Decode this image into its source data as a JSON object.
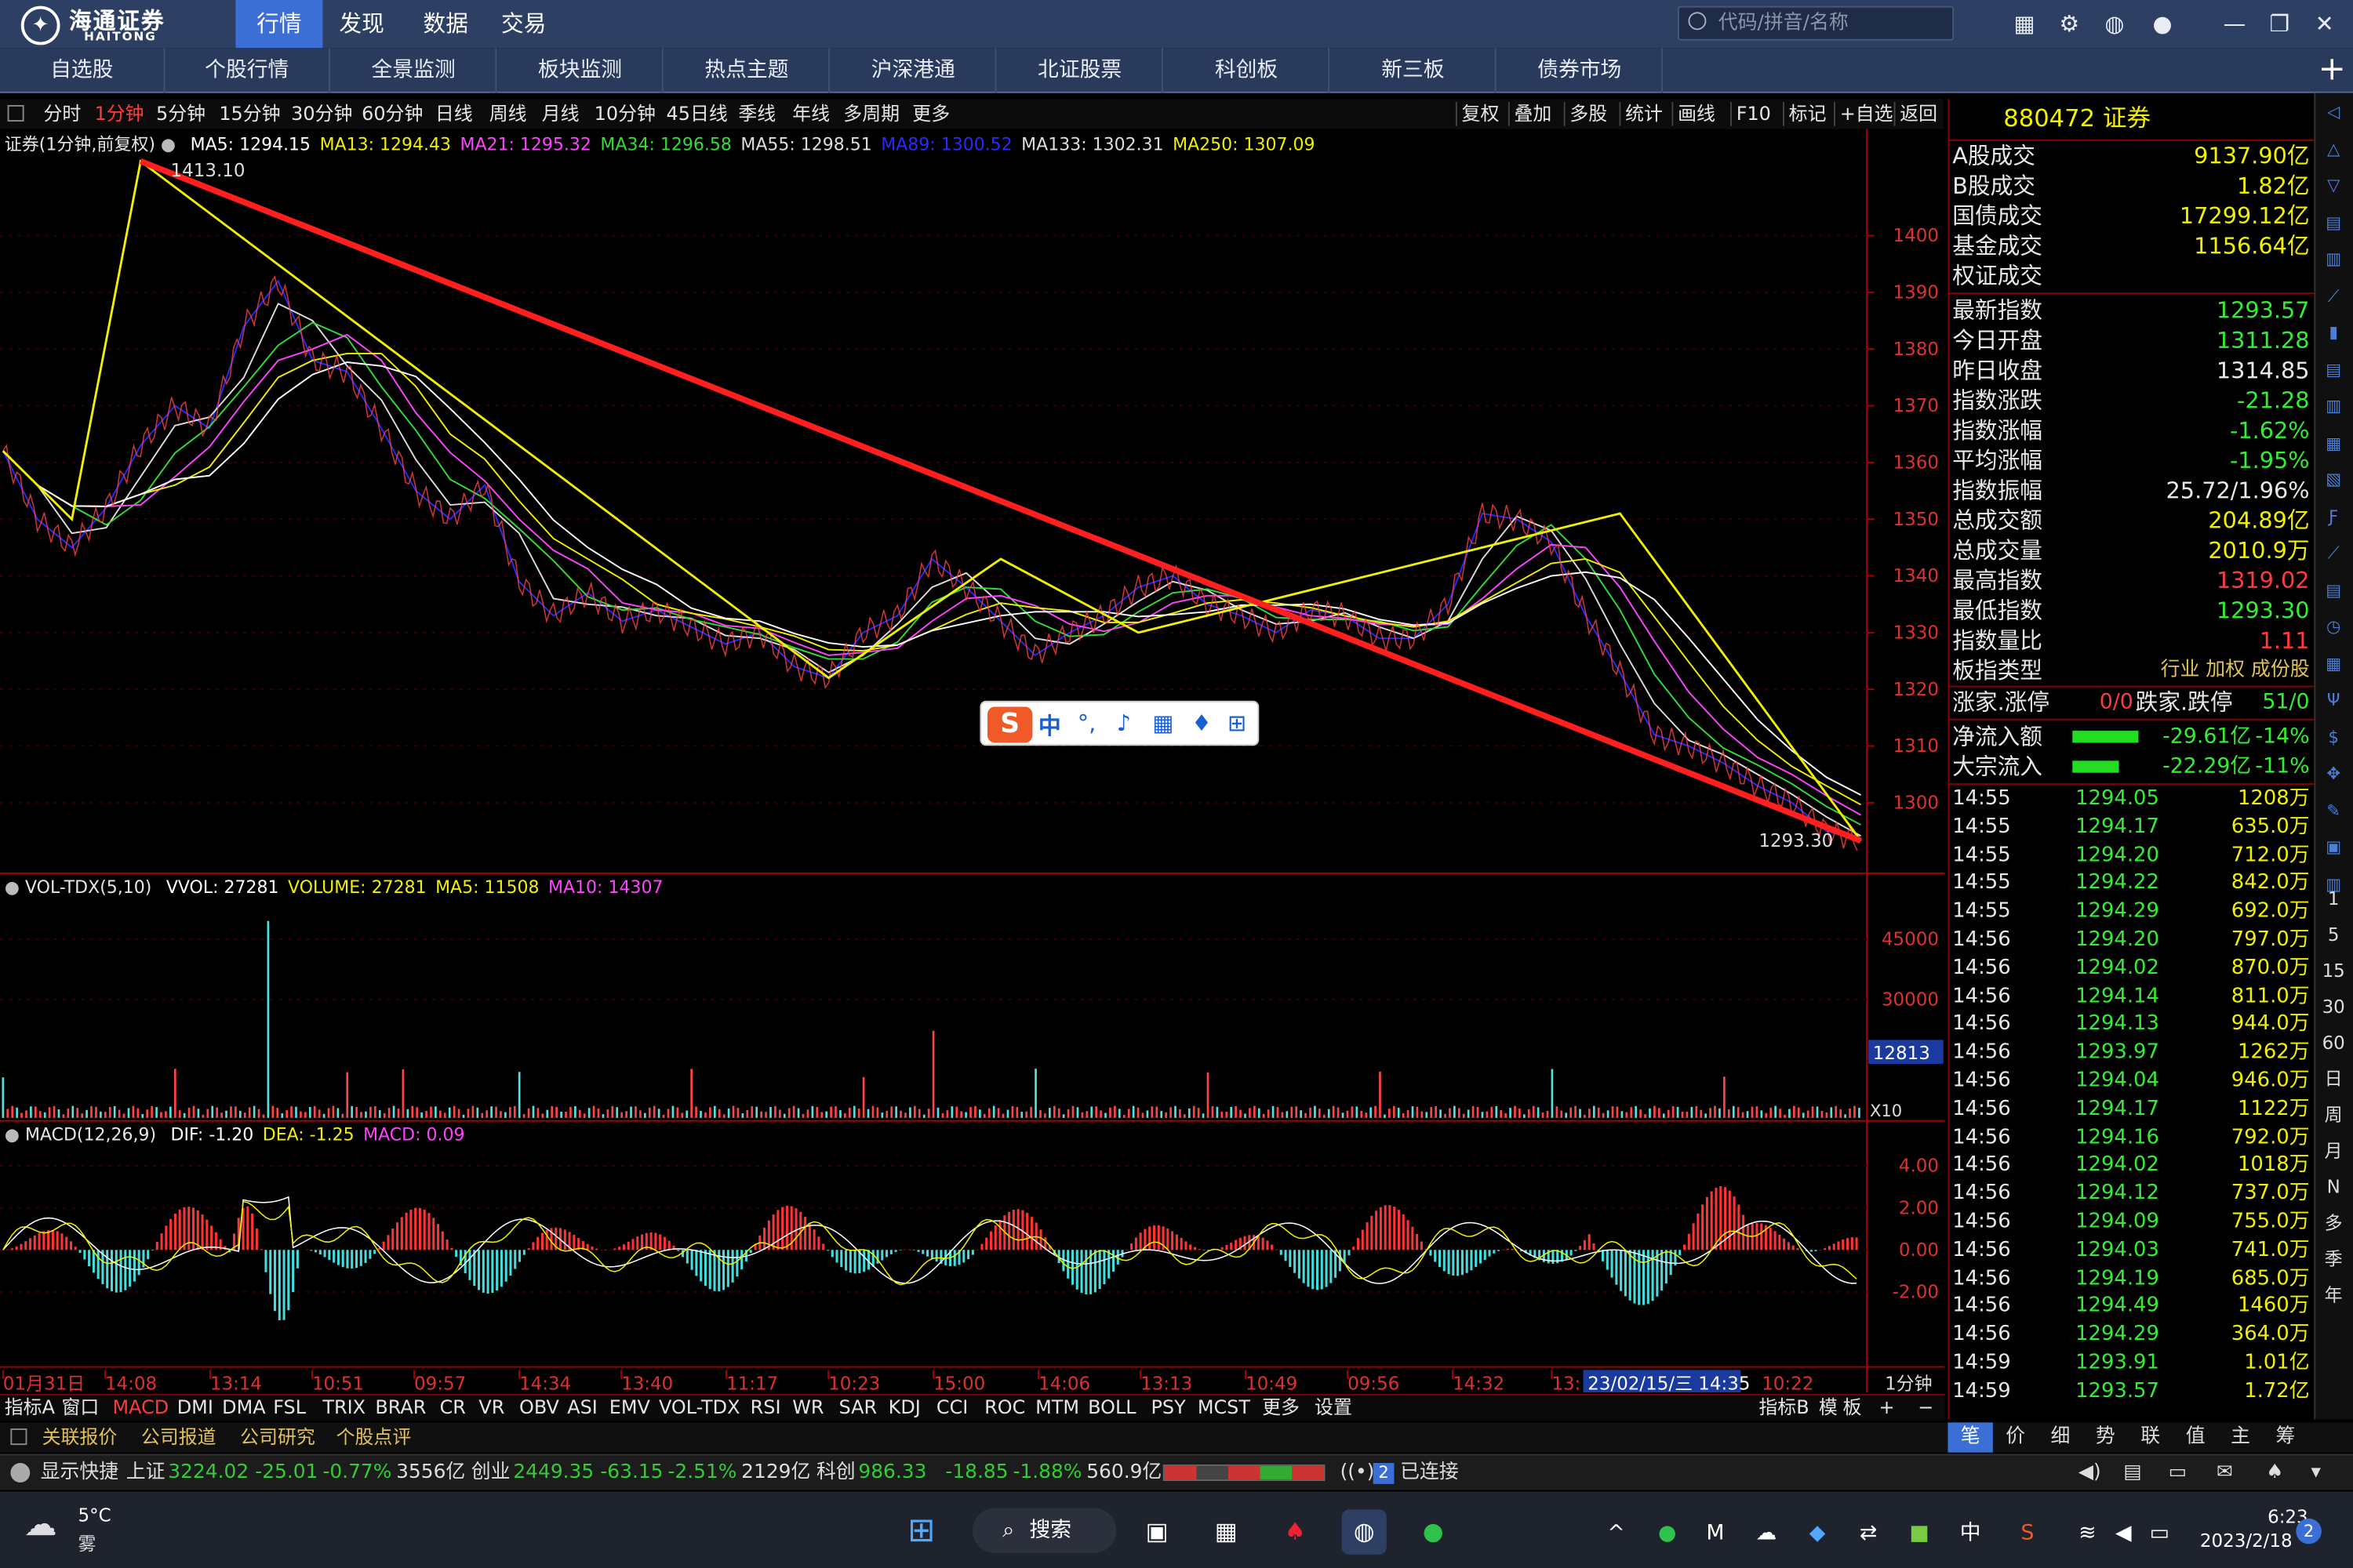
{
  "titlebar": {
    "logo_name": "海通证券",
    "logo_sub": "HAITONG",
    "menus": [
      "行情",
      "发现",
      "数据",
      "交易"
    ],
    "search_placeholder": "代码/拼音/名称"
  },
  "nav": [
    "自选股",
    "个股行情",
    "全景监测",
    "板块监测",
    "热点主题",
    "沪深港通",
    "北证股票",
    "科创板",
    "新三板",
    "债券市场"
  ],
  "periods": [
    "分时",
    "1分钟",
    "5分钟",
    "15分钟",
    "30分钟",
    "60分钟",
    "日线",
    "周线",
    "月线",
    "10分钟",
    "45日线",
    "季线",
    "年线",
    "多周期",
    "更多"
  ],
  "tools": [
    "复权",
    "叠加",
    "多股",
    "统计",
    "画线",
    "F10",
    "标记",
    "+自选",
    "返回"
  ],
  "chart": {
    "title": "证券(1分钟,前复权)",
    "ma": [
      {
        "label": "MA5: 1294.15",
        "color": "#ffffff"
      },
      {
        "label": "MA13: 1294.43",
        "color": "#f0f000"
      },
      {
        "label": "MA21: 1295.32",
        "color": "#ff44ff"
      },
      {
        "label": "MA34: 1296.58",
        "color": "#33dd33"
      },
      {
        "label": "MA55: 1298.51",
        "color": "#dddddd"
      },
      {
        "label": "MA89: 1300.52",
        "color": "#2a2aff"
      },
      {
        "label": "MA133: 1302.31",
        "color": "#dddddd"
      },
      {
        "label": "MA250: 1307.09",
        "color": "#f0f000"
      }
    ],
    "high_label": "1413.10",
    "low_label": "1293.30",
    "price_ticks": [
      "1400",
      "1390",
      "1380",
      "1370",
      "1360",
      "1350",
      "1340",
      "1330",
      "1320",
      "1310",
      "1300"
    ],
    "vol_title": "VOL-TDX(5,10)",
    "vol_legend": [
      {
        "label": "VVOL: 27281",
        "color": "#ffffff"
      },
      {
        "label": "VOLUME: 27281",
        "color": "#f0f000"
      },
      {
        "label": "MA5: 11508",
        "color": "#f0f000"
      },
      {
        "label": "MA10: 14307",
        "color": "#ff44ff"
      }
    ],
    "vol_ticks": [
      "45000",
      "30000"
    ],
    "vol_current": "12813",
    "vol_unit": "X10",
    "macd_title": "MACD(12,26,9)",
    "macd_legend": [
      {
        "label": "DIF: -1.20",
        "color": "#ffffff"
      },
      {
        "label": "DEA: -1.25",
        "color": "#f0f000"
      },
      {
        "label": "MACD: 0.09",
        "color": "#ff44ff"
      }
    ],
    "macd_ticks": [
      "4.00",
      "2.00",
      "0.00",
      "-2.00"
    ],
    "time_ticks": [
      "01月31日",
      "14:08",
      "13:14",
      "10:51",
      "09:57",
      "14:34",
      "13:40",
      "11:17",
      "10:23",
      "15:00",
      "14:06",
      "13:13",
      "10:49",
      "09:56",
      "14:32",
      "13:"
    ],
    "time_cursor": "23/02/15/三 14:35",
    "time_end": "10:22",
    "period_label": "1分钟"
  },
  "indicators": [
    "指标A",
    "窗口",
    "MACD",
    "DMI",
    "DMA",
    "FSL",
    "TRIX",
    "BRAR",
    "CR",
    "VR",
    "OBV",
    "ASI",
    "EMV",
    "VOL-TDX",
    "RSI",
    "WR",
    "SAR",
    "KDJ",
    "CCI",
    "ROC",
    "MTM",
    "BOLL",
    "PSY",
    "MCST",
    "更多",
    "设置"
  ],
  "indicators_right": [
    "指标B",
    "模",
    "板",
    "+",
    "−"
  ],
  "bottom_tabs": [
    "关联报价",
    "公司报道",
    "公司研究",
    "个股点评"
  ],
  "right_panel": {
    "code_title": "880472 证券",
    "stats": [
      {
        "label": "A股成交",
        "value": "9137.90亿",
        "color": "#f0f000"
      },
      {
        "label": "B股成交",
        "value": "1.82亿",
        "color": "#f0f000"
      },
      {
        "label": "国债成交",
        "value": "17299.12亿",
        "color": "#f0f000"
      },
      {
        "label": "基金成交",
        "value": "1156.64亿",
        "color": "#f0f000"
      },
      {
        "label": "权证成交",
        "value": "",
        "color": "#f0f000"
      }
    ],
    "index": [
      {
        "label": "最新指数",
        "value": "1293.57",
        "color": "#33ee33"
      },
      {
        "label": "今日开盘",
        "value": "1311.28",
        "color": "#33ee33"
      },
      {
        "label": "昨日收盘",
        "value": "1314.85",
        "color": "#e8e8e8"
      },
      {
        "label": "指数涨跌",
        "value": "-21.28",
        "color": "#33ee33"
      },
      {
        "label": "指数涨幅",
        "value": "-1.62%",
        "color": "#33ee33"
      },
      {
        "label": "平均涨幅",
        "value": "-1.95%",
        "color": "#33ee33"
      },
      {
        "label": "指数振幅",
        "value": "25.72/1.96%",
        "color": "#e8e8e8"
      },
      {
        "label": "总成交额",
        "value": "204.89亿",
        "color": "#f0f000"
      },
      {
        "label": "总成交量",
        "value": "2010.9万",
        "color": "#f0f000"
      },
      {
        "label": "最高指数",
        "value": "1319.02",
        "color": "#ff3b3b"
      },
      {
        "label": "最低指数",
        "value": "1293.30",
        "color": "#33ee33"
      },
      {
        "label": "指数量比",
        "value": "1.11",
        "color": "#ff3b3b"
      }
    ],
    "type_label": "板指类型",
    "type_value": "行业 加权 成份股",
    "updown_label": "涨家.涨停",
    "updown_value": "0/0",
    "down_label": "跌家.跌停",
    "down_value": "51/0",
    "flow": [
      {
        "label": "净流入额",
        "value": "-29.61亿",
        "pct": "-14%",
        "fill": 0.85
      },
      {
        "label": "大宗流入",
        "value": "-22.29亿",
        "pct": "-11%",
        "fill": 0.6
      }
    ],
    "ticks": [
      {
        "t": "14:55",
        "p": "1294.05",
        "v": "1208万"
      },
      {
        "t": "14:55",
        "p": "1294.17",
        "v": "635.0万"
      },
      {
        "t": "14:55",
        "p": "1294.20",
        "v": "712.0万"
      },
      {
        "t": "14:55",
        "p": "1294.22",
        "v": "842.0万"
      },
      {
        "t": "14:55",
        "p": "1294.29",
        "v": "692.0万"
      },
      {
        "t": "14:56",
        "p": "1294.20",
        "v": "797.0万"
      },
      {
        "t": "14:56",
        "p": "1294.02",
        "v": "870.0万"
      },
      {
        "t": "14:56",
        "p": "1294.14",
        "v": "811.0万"
      },
      {
        "t": "14:56",
        "p": "1294.13",
        "v": "944.0万"
      },
      {
        "t": "14:56",
        "p": "1293.97",
        "v": "1262万"
      },
      {
        "t": "14:56",
        "p": "1294.04",
        "v": "946.0万"
      },
      {
        "t": "14:56",
        "p": "1294.17",
        "v": "1122万"
      },
      {
        "t": "14:56",
        "p": "1294.16",
        "v": "792.0万"
      },
      {
        "t": "14:56",
        "p": "1294.02",
        "v": "1018万"
      },
      {
        "t": "14:56",
        "p": "1294.12",
        "v": "737.0万"
      },
      {
        "t": "14:56",
        "p": "1294.09",
        "v": "755.0万"
      },
      {
        "t": "14:56",
        "p": "1294.03",
        "v": "741.0万"
      },
      {
        "t": "14:56",
        "p": "1294.19",
        "v": "685.0万"
      },
      {
        "t": "14:56",
        "p": "1294.49",
        "v": "1460万"
      },
      {
        "t": "14:56",
        "p": "1294.29",
        "v": "364.0万"
      },
      {
        "t": "14:59",
        "p": "1293.91",
        "v": "1.01亿"
      },
      {
        "t": "14:59",
        "p": "1293.57",
        "v": "1.72亿"
      }
    ],
    "tabs": [
      "笔",
      "价",
      "细",
      "势",
      "联",
      "值",
      "主",
      "筹"
    ]
  },
  "sidebar_labels": [
    "1",
    "5",
    "15",
    "30",
    "60",
    "日",
    "周",
    "月",
    "N",
    "多",
    "季",
    "年"
  ],
  "statusbar": {
    "quick": "显示快捷",
    "items": [
      {
        "name": "上证",
        "val": "3224.02",
        "chg": "-25.01",
        "pct": "-0.77%",
        "amt": "3556亿"
      },
      {
        "name": "创业",
        "val": "2449.35",
        "chg": "-63.15",
        "pct": "-2.51%",
        "amt": "2129亿"
      },
      {
        "name": "科创",
        "val": "986.33",
        "chg": "-18.85",
        "pct": "-1.88%",
        "amt": "560.9亿"
      }
    ],
    "conn_count": "2",
    "conn_text": "已连接"
  },
  "taskbar": {
    "weather_temp": "5°C",
    "weather_desc": "雾",
    "search": "搜索",
    "time": "6:23",
    "date": "2023/2/18",
    "notif": "2",
    "ime": "中"
  },
  "chart_data": {
    "type": "line",
    "title": "证券(1分钟,前复权)",
    "series": [
      {
        "name": "MA5",
        "values": [
          1294.15
        ]
      },
      {
        "name": "MA13",
        "values": [
          1294.43
        ]
      },
      {
        "name": "MA21",
        "values": [
          1295.32
        ]
      },
      {
        "name": "MA34",
        "values": [
          1296.58
        ]
      },
      {
        "name": "MA55",
        "values": [
          1298.51
        ]
      },
      {
        "name": "MA89",
        "values": [
          1300.52
        ]
      },
      {
        "name": "MA133",
        "values": [
          1302.31
        ]
      },
      {
        "name": "MA250",
        "values": [
          1307.09
        ]
      }
    ],
    "price_points": [
      1362,
      1350,
      1345,
      1352,
      1363,
      1370,
      1366,
      1384,
      1392,
      1378,
      1376,
      1366,
      1355,
      1350,
      1356,
      1339,
      1333,
      1337,
      1332,
      1334,
      1331,
      1328,
      1330,
      1324,
      1322,
      1330,
      1333,
      1343,
      1338,
      1332,
      1326,
      1330,
      1333,
      1338,
      1340,
      1335,
      1333,
      1330,
      1334,
      1333,
      1329,
      1329,
      1335,
      1351,
      1350,
      1346,
      1333,
      1323,
      1312,
      1310,
      1307,
      1303,
      1300,
      1295,
      1293.3
    ],
    "ylim": [
      1293.3,
      1413.1
    ],
    "high": 1413.1,
    "low": 1293.3,
    "trend_line": {
      "from": 1413.1,
      "to": 1293.3
    }
  }
}
